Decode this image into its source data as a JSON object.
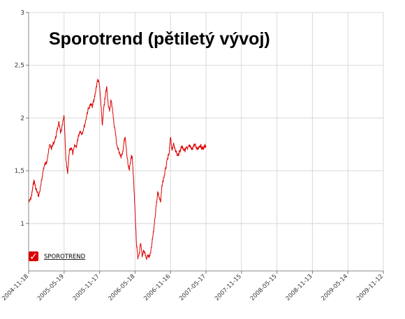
{
  "chart_data": {
    "type": "line",
    "title": "Sporotrend (pětiletý vývoj)",
    "xlabel": "",
    "ylabel": "",
    "ylim": [
      0.55,
      3
    ],
    "y_ticks": [
      1,
      1.5,
      2,
      2.5,
      3
    ],
    "y_tick_labels": [
      "1",
      "1,5",
      "2",
      "2,5",
      "3"
    ],
    "x_tick_labels": [
      "2004-11-18",
      "2005-05-19",
      "2005-11-17",
      "2006-05-18",
      "2006-11-16",
      "2007-05-17",
      "2007-11-15",
      "2008-05-15",
      "2008-11-13",
      "2009-05-14",
      "2009-11-12"
    ],
    "grid": true,
    "legend_position": "bottom-left",
    "series": [
      {
        "name": "SPOROTREND",
        "color": "#dd0000",
        "x": [
          0,
          0.04,
          0.08,
          0.1,
          0.12,
          0.15,
          0.18,
          0.2,
          0.24,
          0.28,
          0.31,
          0.35,
          0.38,
          0.42,
          0.46,
          0.5,
          0.55,
          0.6,
          0.65,
          0.7,
          0.75,
          0.8,
          0.85,
          0.9,
          0.95,
          1.0,
          1.05,
          1.1,
          1.15,
          1.2,
          1.25,
          1.3,
          1.35,
          1.4,
          1.45,
          1.5,
          1.55,
          1.6,
          1.65,
          1.7,
          1.75,
          1.8,
          1.85,
          1.9,
          1.95,
          2.0,
          2.04,
          2.08,
          2.12,
          2.16,
          2.2,
          2.24,
          2.28,
          2.32,
          2.36,
          2.4,
          2.44,
          2.48,
          2.52,
          2.56,
          2.6,
          2.64,
          2.68,
          2.72,
          2.76,
          2.8,
          2.84,
          2.88,
          2.92,
          2.96,
          3.0,
          3.04,
          3.08,
          3.12,
          3.16,
          3.2,
          3.24,
          3.28,
          3.32,
          3.36,
          3.4,
          3.44,
          3.48,
          3.52,
          3.56,
          3.6,
          3.64,
          3.68,
          3.72,
          3.76,
          3.8,
          3.84,
          3.88,
          3.92,
          3.96,
          4.0,
          4.04,
          4.08,
          4.12,
          4.16,
          4.2,
          4.24,
          4.28,
          4.32,
          4.36,
          4.4,
          4.44,
          4.48,
          4.52,
          4.56,
          4.6,
          4.64,
          4.68,
          4.72,
          4.76,
          4.8,
          4.84,
          4.88,
          4.92,
          4.96,
          5.0
        ],
        "y": [
          1.2,
          1.22,
          1.26,
          1.3,
          1.35,
          1.41,
          1.37,
          1.33,
          1.3,
          1.26,
          1.3,
          1.37,
          1.44,
          1.52,
          1.56,
          1.58,
          1.66,
          1.75,
          1.71,
          1.76,
          1.8,
          1.87,
          1.97,
          1.85,
          1.93,
          2.02,
          1.6,
          1.47,
          1.7,
          1.72,
          1.66,
          1.74,
          1.73,
          1.83,
          1.88,
          1.85,
          1.9,
          1.96,
          2.05,
          2.1,
          2.13,
          2.11,
          2.18,
          2.28,
          2.37,
          2.3,
          2.12,
          1.93,
          2.1,
          2.2,
          2.3,
          2.14,
          2.06,
          2.17,
          2.1,
          1.96,
          1.88,
          1.76,
          1.7,
          1.68,
          1.63,
          1.65,
          1.75,
          1.82,
          1.68,
          1.56,
          1.5,
          1.62,
          1.64,
          1.4,
          1.12,
          0.81,
          0.66,
          0.72,
          0.81,
          0.68,
          0.75,
          0.72,
          0.66,
          0.7,
          0.68,
          0.72,
          0.82,
          0.92,
          1.05,
          1.18,
          1.3,
          1.25,
          1.2,
          1.36,
          1.42,
          1.48,
          1.55,
          1.62,
          1.66,
          1.82,
          1.7,
          1.75,
          1.72,
          1.68,
          1.64,
          1.67,
          1.7,
          1.74,
          1.71,
          1.69,
          1.72,
          1.7,
          1.74,
          1.72,
          1.7,
          1.73,
          1.75,
          1.72,
          1.71,
          1.73,
          1.74,
          1.72,
          1.71,
          1.73,
          1.74
        ]
      }
    ]
  },
  "legend": {
    "label": "SPOROTREND",
    "check_glyph": "✓",
    "swatch_color": "#dd0000"
  }
}
